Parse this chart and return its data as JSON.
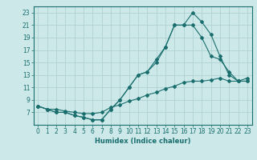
{
  "xlabel": "Humidex (Indice chaleur)",
  "bg_color": "#cce8e8",
  "grid_color": "#aacece",
  "line_color": "#1a6e6e",
  "xlim": [
    -0.5,
    23.5
  ],
  "ylim": [
    5.0,
    24.0
  ],
  "yticks": [
    7,
    9,
    11,
    13,
    15,
    17,
    19,
    21,
    23
  ],
  "xticks": [
    0,
    1,
    2,
    3,
    4,
    5,
    6,
    7,
    8,
    9,
    10,
    11,
    12,
    13,
    14,
    15,
    16,
    17,
    18,
    19,
    20,
    21,
    22,
    23
  ],
  "line1_x": [
    0,
    1,
    2,
    3,
    4,
    5,
    6,
    7,
    8,
    9,
    10,
    11,
    12,
    13,
    14,
    15,
    16,
    17,
    18,
    19,
    20,
    21,
    22,
    23
  ],
  "line1_y": [
    8.0,
    7.5,
    7.0,
    7.0,
    6.5,
    6.2,
    5.8,
    5.8,
    7.5,
    9.0,
    11.0,
    13.0,
    13.5,
    15.0,
    17.5,
    21.0,
    21.0,
    23.0,
    21.5,
    19.5,
    16.0,
    13.0,
    12.0,
    12.0
  ],
  "line2_x": [
    0,
    1,
    2,
    3,
    4,
    5,
    6,
    7,
    8,
    9,
    10,
    11,
    12,
    13,
    14,
    15,
    16,
    17,
    18,
    19,
    20,
    21,
    22,
    23
  ],
  "line2_y": [
    8.0,
    7.5,
    7.0,
    7.0,
    6.5,
    6.2,
    5.8,
    5.8,
    7.5,
    9.0,
    11.0,
    13.0,
    13.5,
    15.5,
    17.5,
    21.0,
    21.0,
    21.0,
    19.0,
    16.0,
    15.5,
    13.5,
    12.0,
    12.0
  ],
  "line3_x": [
    0,
    1,
    2,
    3,
    4,
    5,
    6,
    7,
    8,
    9,
    10,
    11,
    12,
    13,
    14,
    15,
    16,
    17,
    18,
    19,
    20,
    21,
    22,
    23
  ],
  "line3_y": [
    8.0,
    7.5,
    7.5,
    7.2,
    7.0,
    6.8,
    6.8,
    7.0,
    7.8,
    8.2,
    8.8,
    9.2,
    9.8,
    10.2,
    10.8,
    11.2,
    11.8,
    12.0,
    12.0,
    12.2,
    12.5,
    12.0,
    12.0,
    12.5
  ],
  "tick_fontsize": 5.5,
  "xlabel_fontsize": 6.0
}
